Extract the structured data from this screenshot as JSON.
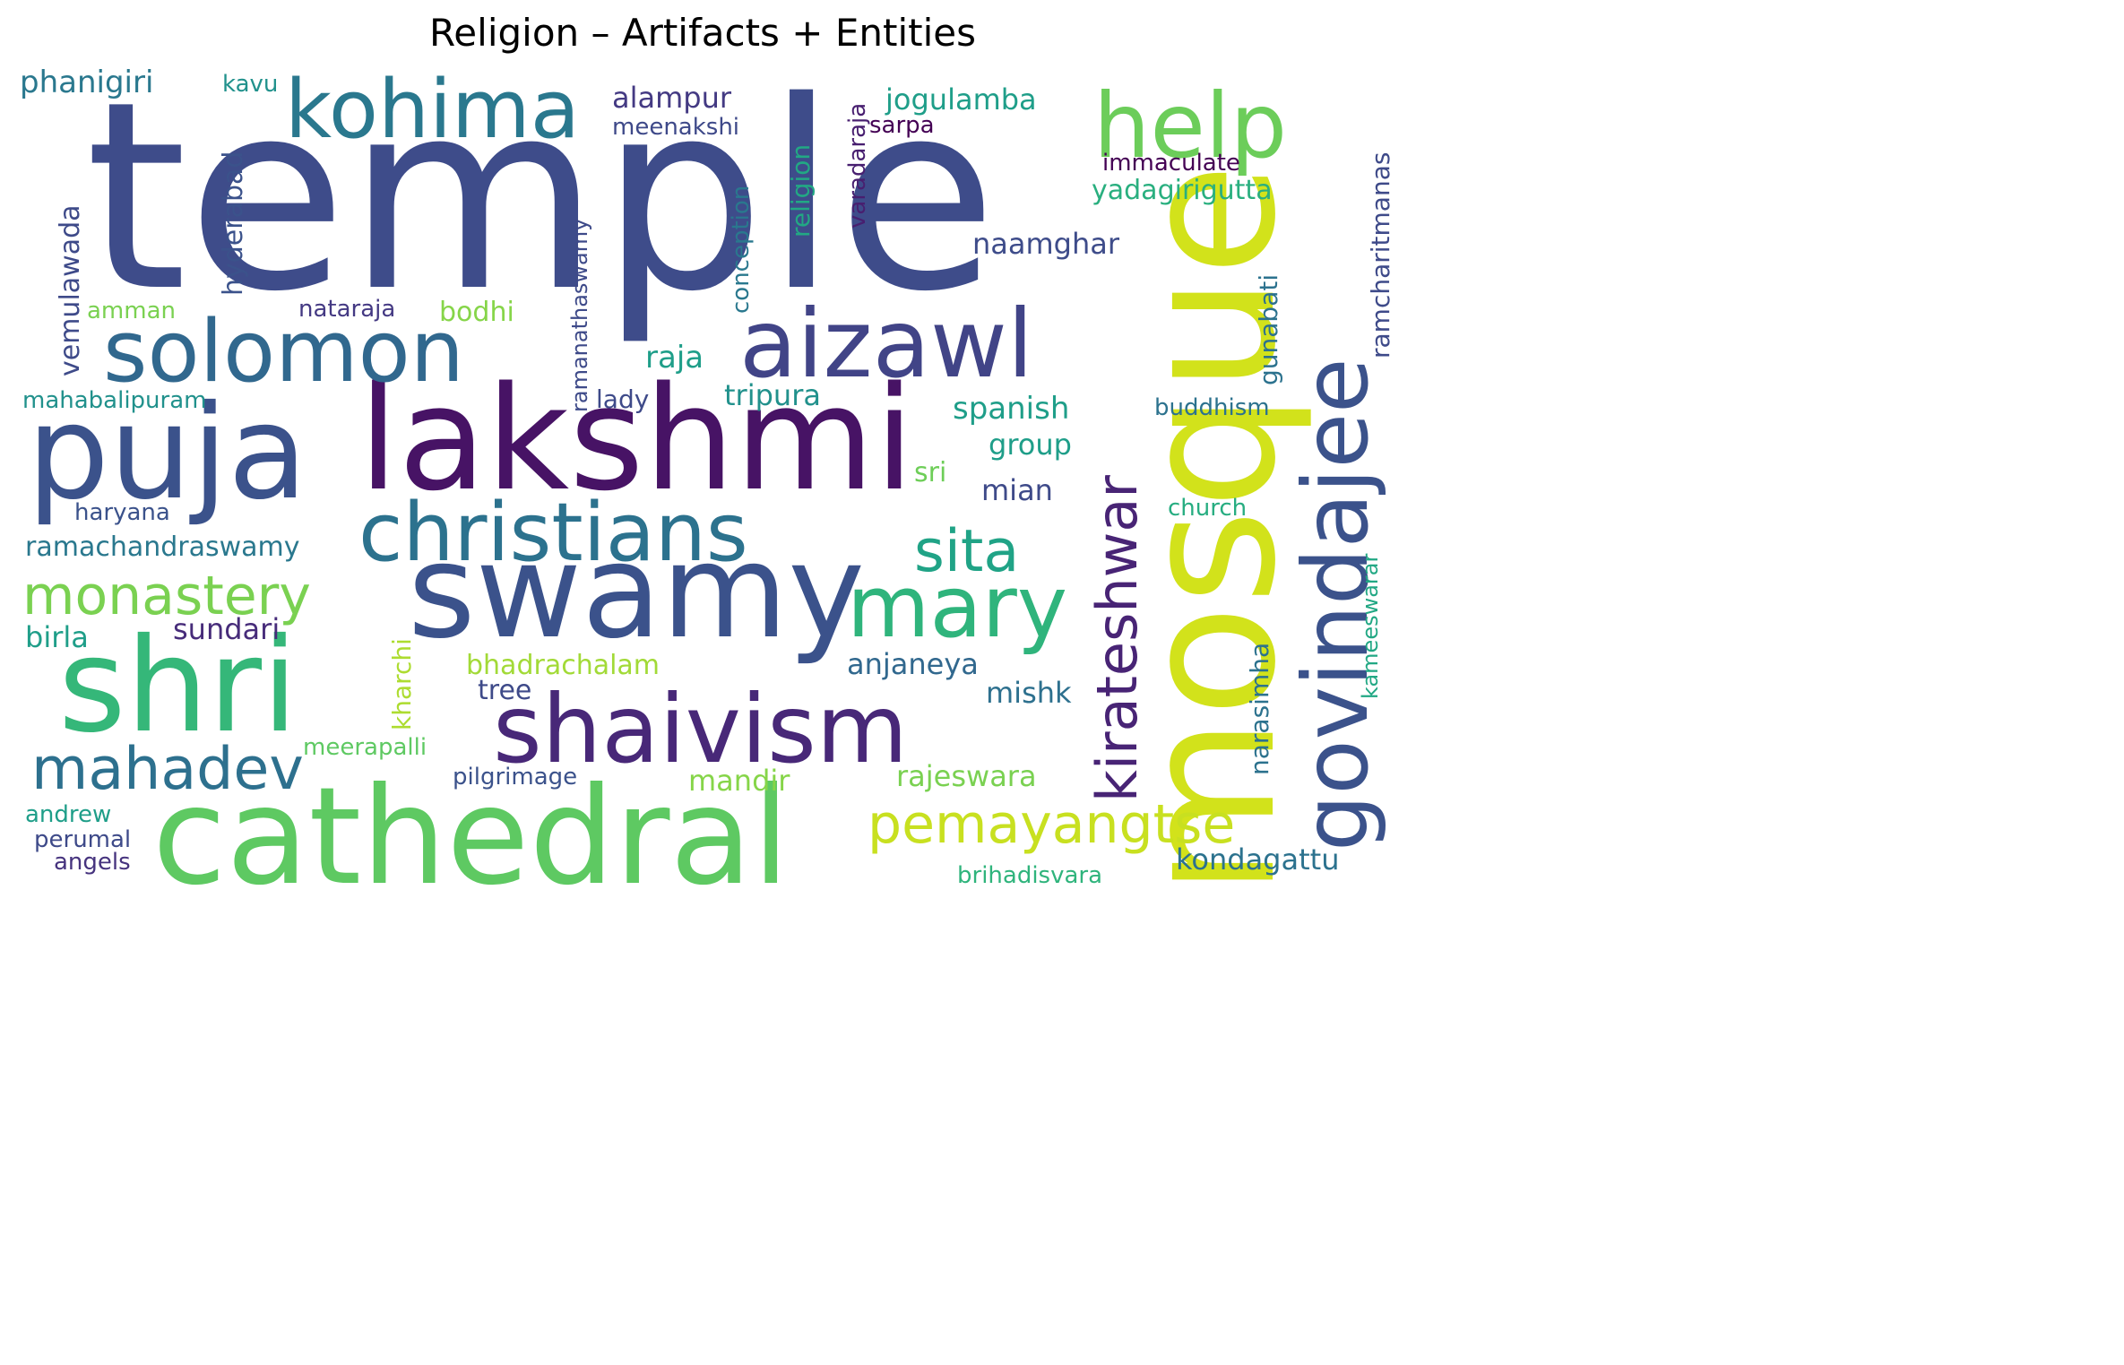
{
  "title": "Religion – Artifacts + Entities",
  "words": [
    {
      "text": "temple",
      "color": "#3e4c8a"
    },
    {
      "text": "mosque",
      "color": "#d2e21b"
    },
    {
      "text": "lakshmi",
      "color": "#471365"
    },
    {
      "text": "cathedral",
      "color": "#5ec962"
    },
    {
      "text": "swamy",
      "color": "#3b528b"
    },
    {
      "text": "puja",
      "color": "#3b528b"
    },
    {
      "text": "shri",
      "color": "#35b779"
    },
    {
      "text": "aizawl",
      "color": "#414487"
    },
    {
      "text": "christians",
      "color": "#2c728e"
    },
    {
      "text": "shaivism",
      "color": "#482878"
    },
    {
      "text": "help",
      "color": "#6ccd5a"
    },
    {
      "text": "solomon",
      "color": "#31688e"
    },
    {
      "text": "kohima",
      "color": "#2a788e"
    },
    {
      "text": "govindajee",
      "color": "#3b528b"
    },
    {
      "text": "mary",
      "color": "#2fb47c"
    },
    {
      "text": "mahadev",
      "color": "#2d708e"
    },
    {
      "text": "monastery",
      "color": "#7ad151"
    },
    {
      "text": "pemayangtse",
      "color": "#c8e020"
    },
    {
      "text": "kirateshwar",
      "color": "#482475"
    },
    {
      "text": "sita",
      "color": "#20a386"
    },
    {
      "text": "phanigiri",
      "color": "#2a788e"
    },
    {
      "text": "kavu",
      "color": "#21918c"
    },
    {
      "text": "alampur",
      "color": "#443a83"
    },
    {
      "text": "meenakshi",
      "color": "#3e4989"
    },
    {
      "text": "jogulamba",
      "color": "#1f9e89"
    },
    {
      "text": "sarpa",
      "color": "#440154"
    },
    {
      "text": "varadaraja",
      "color": "#481f70"
    },
    {
      "text": "religion",
      "color": "#22a884"
    },
    {
      "text": "conception",
      "color": "#2a788e"
    },
    {
      "text": "ramanathaswamy",
      "color": "#3e4a89"
    },
    {
      "text": "hyderabad",
      "color": "#3b528b"
    },
    {
      "text": "vemulawada",
      "color": "#3e4a89"
    },
    {
      "text": "amman",
      "color": "#7ad151"
    },
    {
      "text": "nataraja",
      "color": "#443983"
    },
    {
      "text": "bodhi",
      "color": "#86d549"
    },
    {
      "text": "immaculate",
      "color": "#440154"
    },
    {
      "text": "yadagirigutta",
      "color": "#29af7f"
    },
    {
      "text": "naamghar",
      "color": "#3e4c8a"
    },
    {
      "text": "ramcharitmanas",
      "color": "#3e4a89"
    },
    {
      "text": "gunabati",
      "color": "#2c728e"
    },
    {
      "text": "raja",
      "color": "#1f9e89"
    },
    {
      "text": "lady",
      "color": "#3e4a89"
    },
    {
      "text": "tripura",
      "color": "#21918c"
    },
    {
      "text": "mahabalipuram",
      "color": "#21918c"
    },
    {
      "text": "spanish",
      "color": "#1f9e89"
    },
    {
      "text": "buddhism",
      "color": "#2c728e"
    },
    {
      "text": "group",
      "color": "#1f9e89"
    },
    {
      "text": "sri",
      "color": "#6ece58"
    },
    {
      "text": "mian",
      "color": "#3e4a89"
    },
    {
      "text": "haryana",
      "color": "#3b528b"
    },
    {
      "text": "church",
      "color": "#27ad81"
    },
    {
      "text": "ramachandraswamy",
      "color": "#2a788e"
    },
    {
      "text": "kameeswarar",
      "color": "#22a884"
    },
    {
      "text": "narasimha",
      "color": "#2c728e"
    },
    {
      "text": "kharchi",
      "color": "#addc30"
    },
    {
      "text": "birla",
      "color": "#1f9e89"
    },
    {
      "text": "sundari",
      "color": "#472c7a"
    },
    {
      "text": "bhadrachalam",
      "color": "#a2da37"
    },
    {
      "text": "anjaneya",
      "color": "#31688e"
    },
    {
      "text": "tree",
      "color": "#3e4a89"
    },
    {
      "text": "mishk",
      "color": "#2d708e"
    },
    {
      "text": "meerapalli",
      "color": "#5ec962"
    },
    {
      "text": "pilgrimage",
      "color": "#3b528b"
    },
    {
      "text": "mandir",
      "color": "#86d549"
    },
    {
      "text": "rajeswara",
      "color": "#7ad151"
    },
    {
      "text": "andrew",
      "color": "#1f9e89"
    },
    {
      "text": "perumal",
      "color": "#3e4a89"
    },
    {
      "text": "angels",
      "color": "#46337e"
    },
    {
      "text": "brihadisvara",
      "color": "#2fb47c"
    },
    {
      "text": "kondagattu",
      "color": "#2c728e"
    }
  ]
}
